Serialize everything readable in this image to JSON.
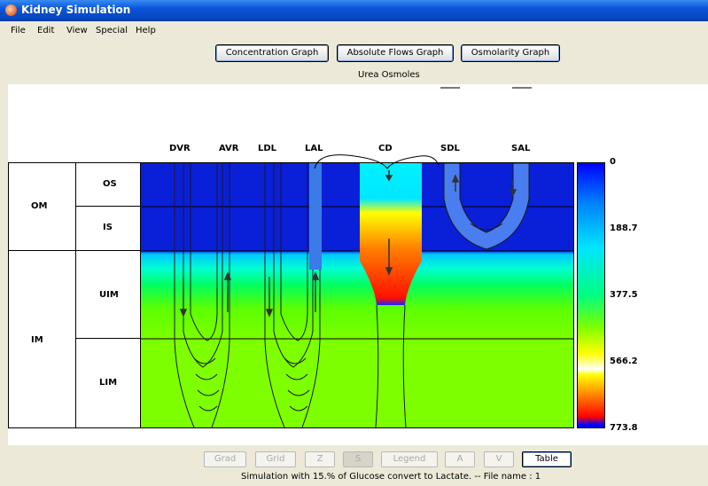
{
  "window": {
    "title": "Kidney Simulation"
  },
  "menu": [
    "File",
    "Edit",
    "View",
    "Special",
    "Help"
  ],
  "buttons": {
    "concentration": "Concentration Graph",
    "absolute": "Absolute Flows Graph",
    "osmolarity": "Osmolarity Graph"
  },
  "graph_title": "Urea Osmoles",
  "zones": {
    "om": "OM",
    "im": "IM",
    "os": "OS",
    "is": "IS",
    "uim": "UIM",
    "lim": "LIM"
  },
  "tubes": [
    "DVR",
    "AVR",
    "LDL",
    "LAL",
    "CD",
    "SDL",
    "SAL"
  ],
  "legend": [
    "0",
    "188.7",
    "377.5",
    "566.2",
    "773.8"
  ],
  "controls": {
    "grad": "Grad",
    "grid": "Grid",
    "z": "Z",
    "s": "S",
    "legend": "Legend",
    "a": "A",
    "v": "V",
    "table": "Table"
  },
  "status": "Simulation with   15.% of Glucose convert to Lactate. -- File name : 1"
}
